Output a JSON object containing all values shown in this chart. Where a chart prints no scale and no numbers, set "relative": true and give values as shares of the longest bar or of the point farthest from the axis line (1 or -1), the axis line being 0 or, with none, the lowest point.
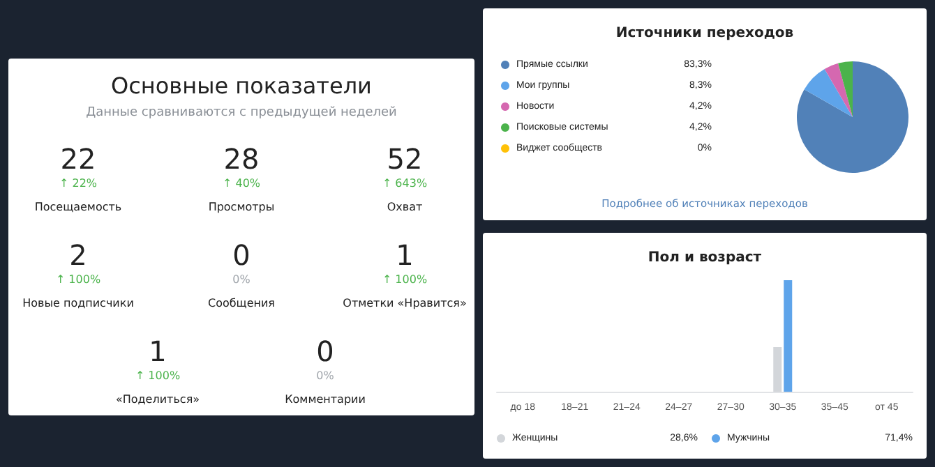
{
  "chart_data": [
    {
      "type": "other",
      "title": "Основные показатели",
      "subtitle": "Данные сравниваются с предыдущей неделей",
      "annotations": [
        "22",
        "↑ 22%",
        "Посещаемость",
        "28",
        "↑ 40%",
        "Просмотры",
        "52",
        "↑ 643%",
        "Охват",
        "2",
        "↑ 100%",
        "Новые подписчики",
        "0",
        "0%",
        "Сообщения",
        "1",
        "↑ 100%",
        "Отметки «Нравится»",
        "1",
        "↑ 100%",
        "«Поделиться»",
        "0",
        "0%",
        "Комментарии"
      ]
    },
    {
      "type": "pie",
      "title": "Источники переходов",
      "categories": [
        "Прямые ссылки",
        "Мои группы",
        "Новости",
        "Поисковые системы",
        "Виджет сообществ"
      ],
      "values": [
        83.3,
        8.3,
        4.2,
        4.2,
        0
      ],
      "value_labels": [
        "83,3%",
        "8,3%",
        "4,2%",
        "4,2%",
        "0%"
      ],
      "colors": [
        "#5181b8",
        "#5ea4ea",
        "#d568b0",
        "#4bb34b",
        "#ffc107"
      ],
      "legend": "left",
      "annotations": [
        "Подробнее об источниках переходов"
      ]
    },
    {
      "type": "bar",
      "title": "Пол и возраст",
      "relative": true,
      "categories": [
        "до 18",
        "18–21",
        "21–24",
        "24–27",
        "27–30",
        "30–35",
        "35–45",
        "от 45"
      ],
      "series": [
        {
          "name": "Женщины",
          "color": "#d3d6da",
          "values": [
            0,
            0,
            0,
            0,
            0,
            0.4,
            0,
            0
          ]
        },
        {
          "name": "Мужчины",
          "color": "#5ea4ea",
          "values": [
            0,
            0,
            0,
            0,
            0,
            1,
            0,
            0
          ]
        }
      ],
      "legend": "bottom",
      "annotations": [
        "28,6%",
        "71,4%"
      ]
    }
  ]
}
